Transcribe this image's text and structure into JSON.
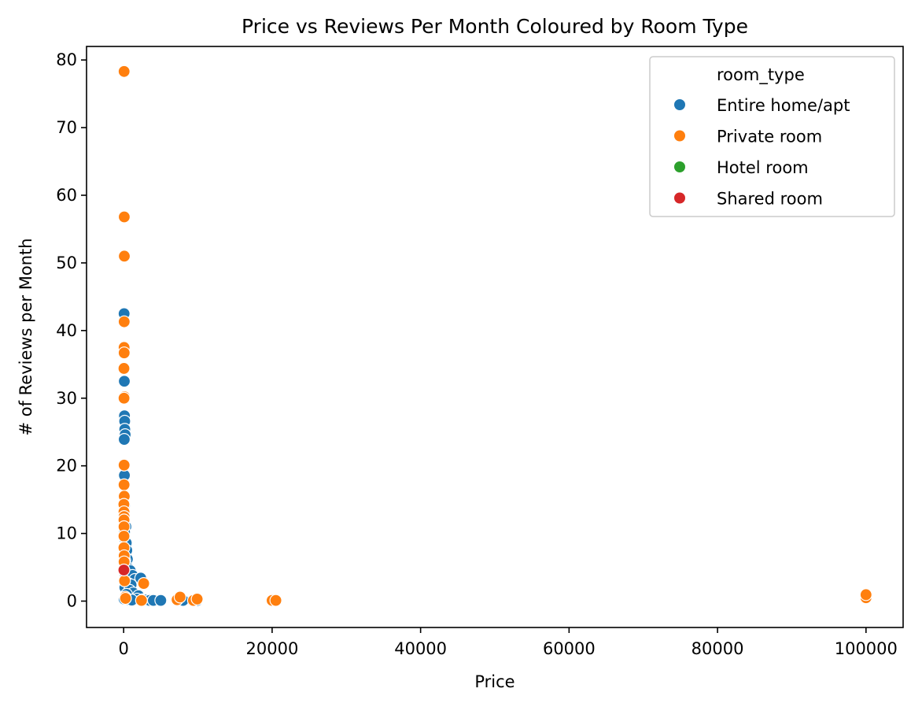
{
  "chart_data": {
    "type": "scatter",
    "title": "Price vs Reviews Per Month Coloured by Room Type",
    "xlabel": "Price",
    "ylabel": "# of Reviews per Month",
    "xlim": [
      -5000,
      105000
    ],
    "ylim": [
      -3.9,
      82
    ],
    "xticks": [
      0,
      20000,
      40000,
      60000,
      80000,
      100000
    ],
    "yticks": [
      0,
      10,
      20,
      30,
      40,
      50,
      60,
      70,
      80
    ],
    "grid": false,
    "legend": {
      "title": "room_type",
      "placement": "top-right"
    },
    "series": [
      {
        "name": "Entire home/apt",
        "color": "#1f77b4",
        "points": [
          [
            60,
            42.5
          ],
          [
            90,
            32.5
          ],
          [
            110,
            27.4
          ],
          [
            140,
            26.6
          ],
          [
            150,
            25.4
          ],
          [
            200,
            24.6
          ],
          [
            80,
            23.9
          ],
          [
            100,
            18.6
          ],
          [
            130,
            14.2
          ],
          [
            300,
            11.0
          ],
          [
            120,
            10.2
          ],
          [
            180,
            9.0
          ],
          [
            350,
            8.6
          ],
          [
            420,
            7.5
          ],
          [
            500,
            6.2
          ],
          [
            150,
            6.0
          ],
          [
            250,
            5.2
          ],
          [
            700,
            4.8
          ],
          [
            900,
            4.5
          ],
          [
            220,
            4.0
          ],
          [
            1200,
            3.8
          ],
          [
            1500,
            3.2
          ],
          [
            2300,
            3.4
          ],
          [
            600,
            2.6
          ],
          [
            1000,
            2.4
          ],
          [
            160,
            2.0
          ],
          [
            800,
            1.6
          ],
          [
            1300,
            1.2
          ],
          [
            400,
            1.0
          ],
          [
            2000,
            0.8
          ],
          [
            250,
            0.5
          ],
          [
            1800,
            0.3
          ],
          [
            2600,
            0.2
          ],
          [
            3000,
            0.15
          ],
          [
            3500,
            0.1
          ],
          [
            4000,
            0.1
          ],
          [
            5000,
            0.1
          ],
          [
            8000,
            0.1
          ],
          [
            9900,
            0.1
          ],
          [
            60,
            0.3
          ],
          [
            700,
            0.2
          ],
          [
            1100,
            0.15
          ]
        ]
      },
      {
        "name": "Private room",
        "color": "#ff7f0e",
        "points": [
          [
            60,
            78.3
          ],
          [
            80,
            56.8
          ],
          [
            90,
            51.0
          ],
          [
            70,
            41.3
          ],
          [
            60,
            37.5
          ],
          [
            70,
            36.7
          ],
          [
            40,
            34.4
          ],
          [
            110,
            30.2
          ],
          [
            50,
            30.0
          ],
          [
            60,
            20.1
          ],
          [
            55,
            17.2
          ],
          [
            80,
            15.5
          ],
          [
            30,
            14.3
          ],
          [
            45,
            13.2
          ],
          [
            65,
            12.5
          ],
          [
            45,
            12.0
          ],
          [
            50,
            11.0
          ],
          [
            40,
            9.6
          ],
          [
            35,
            7.9
          ],
          [
            70,
            6.7
          ],
          [
            60,
            5.8
          ],
          [
            120,
            3.0
          ],
          [
            200,
            0.6
          ],
          [
            250,
            0.4
          ],
          [
            2400,
            0.1
          ],
          [
            2700,
            2.6
          ],
          [
            7200,
            0.2
          ],
          [
            7600,
            0.6
          ],
          [
            9400,
            0.1
          ],
          [
            9900,
            0.3
          ],
          [
            20000,
            0.1
          ],
          [
            20500,
            0.1
          ],
          [
            100000,
            0.5
          ],
          [
            100000,
            0.95
          ]
        ]
      },
      {
        "name": "Hotel room",
        "color": "#2ca02c",
        "points": []
      },
      {
        "name": "Shared room",
        "color": "#d62728",
        "points": [
          [
            30,
            4.6
          ]
        ]
      }
    ]
  }
}
